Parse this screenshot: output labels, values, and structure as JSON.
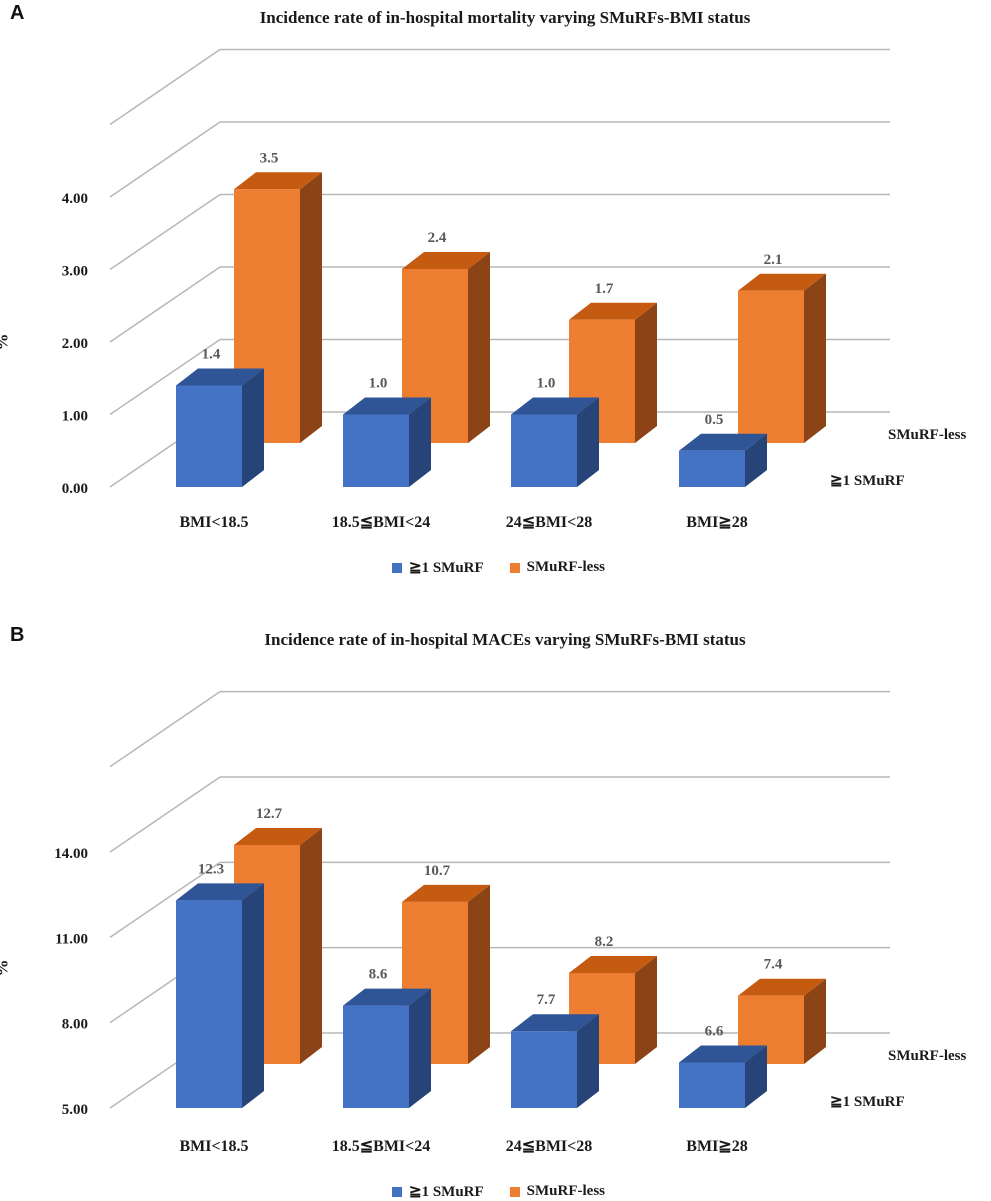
{
  "colors": {
    "blue_front": "#4472C4",
    "blue_top": "#2F5597",
    "blue_side": "#264478",
    "orange_front": "#ED7D31",
    "orange_top": "#C55A11",
    "orange_side": "#8C4316",
    "grid": "#B7B7B7",
    "value_label": "#595959"
  },
  "chart_data": [
    {
      "panel": "A",
      "type": "bar",
      "title": "Incidence rate of in-hospital mortality varying SMuRFs-BMI status",
      "ylabel": "%",
      "ylim": [
        0,
        4
      ],
      "y_ticks": [
        "0.00",
        "1.00",
        "2.00",
        "3.00",
        "4.00"
      ],
      "categories": [
        "BMI<18.5",
        "18.5≦BMI<24",
        "24≦BMI<28",
        "BMI≧28"
      ],
      "series": [
        {
          "name": "≧1 SMuRF",
          "values": [
            1.4,
            1.0,
            1.0,
            0.5
          ],
          "labels": [
            "1.4",
            "1.0",
            "1.0",
            "0.5"
          ]
        },
        {
          "name": "SMuRF-less",
          "values": [
            3.5,
            2.4,
            1.7,
            2.1
          ],
          "labels": [
            "3.5",
            "2.4",
            "1.7",
            "2.1"
          ]
        }
      ],
      "depth_labels": [
        "SMuRF-less",
        "≧1 SMuRF"
      ],
      "legend": [
        "≧1 SMuRF",
        "SMuRF-less"
      ],
      "legend_position": "bottom",
      "grid": true
    },
    {
      "panel": "B",
      "type": "bar",
      "title": "Incidence rate of in-hospital MACEs varying SMuRFs-BMI status",
      "ylabel": "%",
      "ylim": [
        5,
        14
      ],
      "y_ticks": [
        "5.00",
        "8.00",
        "11.00",
        "14.00"
      ],
      "categories": [
        "BMI<18.5",
        "18.5≦BMI<24",
        "24≦BMI<28",
        "BMI≧28"
      ],
      "series": [
        {
          "name": "≧1 SMuRF",
          "values": [
            12.3,
            8.6,
            7.7,
            6.6
          ],
          "labels": [
            "12.3",
            "8.6",
            "7.7",
            "6.6"
          ]
        },
        {
          "name": "SMuRF-less",
          "values": [
            12.7,
            10.7,
            8.2,
            7.4
          ],
          "labels": [
            "12.7",
            "10.7",
            "8.2",
            "7.4"
          ]
        }
      ],
      "depth_labels": [
        "SMuRF-less",
        "≧1 SMuRF"
      ],
      "legend": [
        "≧1 SMuRF",
        "SMuRF-less"
      ],
      "legend_position": "bottom",
      "grid": true
    }
  ]
}
